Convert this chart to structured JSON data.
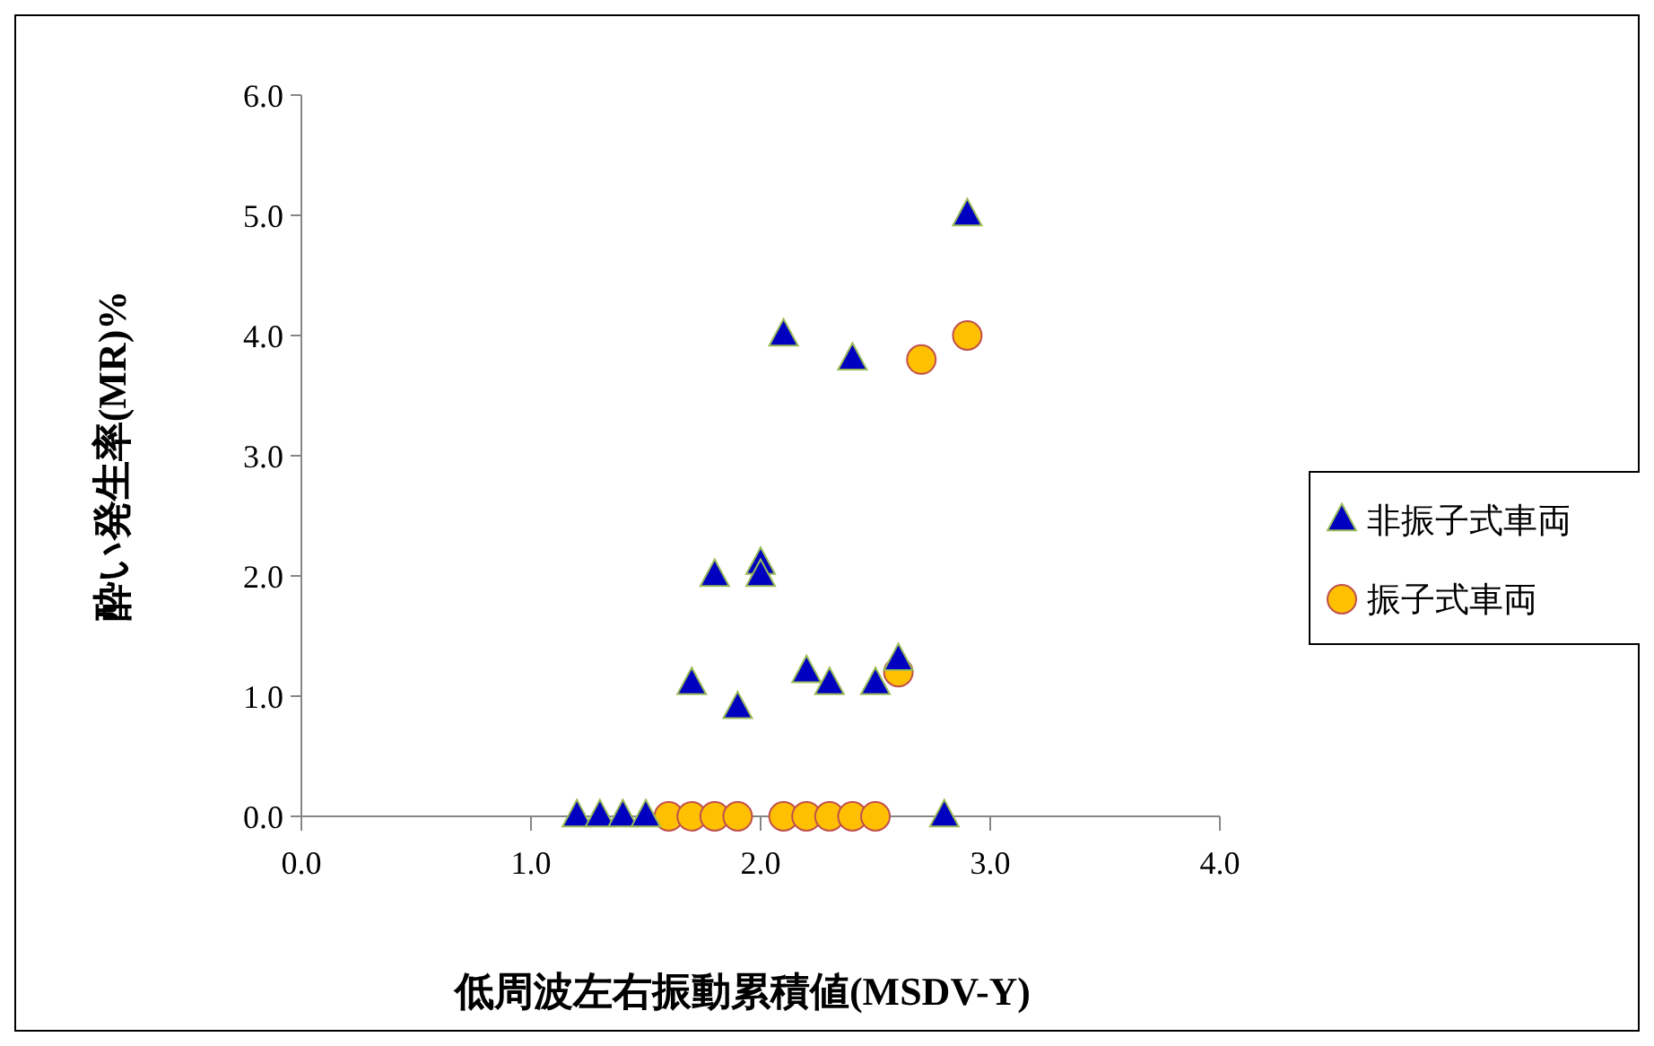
{
  "chart_data": {
    "type": "scatter",
    "xlabel": "低周波左右振動累積値(MSDV-Y)",
    "ylabel": "酔い発生率(MR)%",
    "xlim": [
      0,
      4
    ],
    "ylim": [
      0,
      6
    ],
    "xticks": [
      {
        "value": 0,
        "label": "0.0"
      },
      {
        "value": 1,
        "label": "1.0"
      },
      {
        "value": 2,
        "label": "2.0"
      },
      {
        "value": 3,
        "label": "3.0"
      },
      {
        "value": 4,
        "label": "4.0"
      }
    ],
    "yticks": [
      {
        "value": 0,
        "label": "0.0"
      },
      {
        "value": 1,
        "label": "1.0"
      },
      {
        "value": 2,
        "label": "2.0"
      },
      {
        "value": 3,
        "label": "3.0"
      },
      {
        "value": 4,
        "label": "4.0"
      },
      {
        "value": 5,
        "label": "5.0"
      },
      {
        "value": 6,
        "label": "6.0"
      }
    ],
    "grid": false,
    "legend": "right",
    "series": [
      {
        "name": "振子式車両",
        "color": "#ffc000",
        "marker": "circle",
        "x": [
          1.6,
          1.7,
          1.8,
          1.9,
          2.1,
          2.2,
          2.3,
          2.4,
          2.5,
          2.7,
          2.9,
          2.6
        ],
        "values": [
          0,
          0,
          0,
          0,
          0,
          0,
          0,
          0,
          0,
          3.8,
          4.0,
          1.2
        ]
      },
      {
        "name": "非振子式車両",
        "color": "#0000c0",
        "marker": "triangle",
        "x": [
          1.2,
          1.3,
          1.4,
          1.5,
          2.8,
          2.9,
          2.1,
          2.4,
          1.8,
          2.0,
          2.0,
          1.7,
          1.9,
          2.2,
          2.3,
          2.5,
          2.6
        ],
        "values": [
          0,
          0,
          0,
          0,
          0,
          5.0,
          4.0,
          3.8,
          2.0,
          2.1,
          2.0,
          1.1,
          0.9,
          1.2,
          1.1,
          1.1,
          1.3
        ]
      }
    ]
  }
}
